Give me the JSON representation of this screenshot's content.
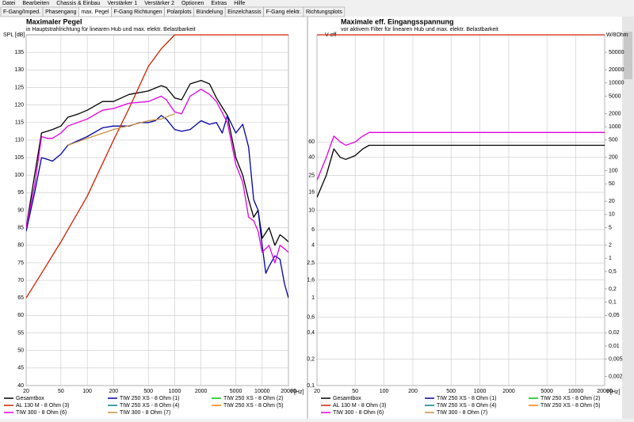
{
  "menu": [
    "Datei",
    "Bearbeiten",
    "Chassis & Einbau",
    "Verstärker 1",
    "Verstärker 2",
    "Optionen",
    "Extras",
    "Hilfe"
  ],
  "tabs": [
    "F-Gang/Imped.",
    "Phasengang",
    "max. Pegel",
    "F-Gang Richtungen",
    "Polarplots",
    "Bündelung",
    "Einzelchassis",
    "F-Gang elektr.",
    "Richtungsplots"
  ],
  "active_tab": 2,
  "chart_data": [
    {
      "type": "line",
      "title": "Maximaler Pegel",
      "subtitle": "in Hauptstrahlrichtung für linearen Hub und max. elektr. Belastbarkeit",
      "y_label": "SPL [dB]",
      "x_label": "f [Hz]",
      "xlog": true,
      "ylog": false,
      "grid": true,
      "xlim": [
        20,
        20000
      ],
      "xticks": [
        20,
        50,
        100,
        200,
        500,
        1000,
        2000,
        5000,
        10000,
        20000
      ],
      "ylim": [
        40,
        140
      ],
      "yticks": [
        40,
        45,
        50,
        55,
        60,
        65,
        70,
        75,
        80,
        85,
        90,
        95,
        100,
        105,
        110,
        115,
        120,
        125,
        130,
        135
      ],
      "series": [
        {
          "name": "Gesamtbox",
          "color": "#000000",
          "x": [
            20,
            25,
            30,
            40,
            50,
            60,
            80,
            100,
            150,
            200,
            300,
            500,
            700,
            800,
            1000,
            1200,
            1500,
            2000,
            2500,
            3000,
            4000,
            5000,
            6000,
            7000,
            8000,
            9000,
            10000,
            12000,
            14000,
            16000,
            18000,
            20000
          ],
          "values": [
            85,
            100,
            112,
            113,
            114,
            116.5,
            117.5,
            118.5,
            121,
            121,
            123,
            124,
            125.5,
            125,
            122,
            121.5,
            126,
            127,
            126,
            122,
            117,
            105,
            100,
            93,
            88,
            90,
            82,
            85,
            80,
            83,
            82,
            81
          ]
        },
        {
          "name": "TIW 250 XS - 8 Ohm (1)",
          "color": "#0000a0",
          "x": [
            20,
            25,
            30,
            35,
            40,
            50,
            60,
            100,
            150,
            200,
            300,
            400,
            500,
            600,
            700,
            800,
            1000,
            1200,
            1500,
            2000,
            2500,
            3000,
            3500,
            4000,
            5000,
            6000,
            7000,
            8000,
            9000,
            10000,
            11000,
            12000,
            14000,
            16000,
            18000,
            20000
          ],
          "values": [
            84,
            95,
            105,
            104.5,
            104,
            106,
            108.5,
            111,
            113.5,
            114,
            114,
            115,
            115,
            115.5,
            117,
            116,
            113,
            112.5,
            113,
            115.5,
            114.5,
            115,
            112,
            117,
            112,
            114.5,
            108,
            93,
            90,
            80,
            72,
            74,
            77,
            76,
            69,
            65
          ]
        },
        {
          "name": "TIW 250 XS - 8 Ohm (2)",
          "color": "#00c000",
          "x": [],
          "values": []
        },
        {
          "name": "AL 130 M - 8 Ohm (3)",
          "color": "#d02000",
          "x": [
            20,
            30,
            50,
            100,
            200,
            300,
            500,
            700,
            1000,
            2000,
            20000
          ],
          "values": [
            65,
            72,
            81,
            94,
            110,
            119,
            131,
            136,
            140,
            140,
            140
          ]
        },
        {
          "name": "TIW 250 XS - 8 Ohm (4)",
          "color": "#008080",
          "x": [],
          "values": []
        },
        {
          "name": "TIW 250 XS - 8 Ohm (5)",
          "color": "#ff8000",
          "x": [],
          "values": []
        },
        {
          "name": "TIW 300 - 8 Ohm (6)",
          "color": "#e000e0",
          "x": [
            20,
            25,
            30,
            35,
            40,
            50,
            60,
            100,
            150,
            200,
            300,
            500,
            700,
            800,
            1000,
            1200,
            1500,
            2000,
            2500,
            3000,
            4000,
            5000,
            6000,
            7000,
            8000,
            9000,
            10000,
            12000,
            14000,
            16000,
            18000,
            20000
          ],
          "values": [
            85,
            97,
            111,
            110.5,
            110.5,
            112,
            114,
            116,
            118.5,
            119,
            120.5,
            121,
            122.5,
            121.5,
            118,
            117.5,
            122.5,
            124.5,
            123,
            121,
            115,
            103,
            98,
            88,
            87,
            84,
            78,
            80,
            75,
            80,
            79,
            78
          ]
        },
        {
          "name": "TIW 300 - 8 Ohm (7)",
          "color": "#c89040",
          "x": [
            60,
            100,
            200,
            500,
            700,
            1000
          ],
          "values": [
            108.5,
            110.5,
            113,
            115.5,
            116,
            117.5
          ]
        }
      ]
    },
    {
      "type": "line",
      "title": "Maximale eff. Eingangsspannung",
      "subtitle": "vor aktivem Filter für linearen Hub und max. elektr. Belastbarkeit",
      "y_label": "V eff",
      "y2_label": "W/8Ohm",
      "x_label": "f [Hz]",
      "xlog": true,
      "ylog": true,
      "y2log": true,
      "grid": true,
      "xlim": [
        20,
        20000
      ],
      "xticks": [
        20,
        50,
        100,
        200,
        500,
        1000,
        2000,
        5000,
        10000,
        20000
      ],
      "ylim": [
        0.1,
        1000
      ],
      "yticks": [
        {
          "value": 0.1,
          "label": "0,1"
        },
        {
          "value": 0.2,
          "label": "0,2"
        },
        {
          "value": 0.4,
          "label": "0,4"
        },
        {
          "value": 0.6,
          "label": "0,6"
        },
        1,
        {
          "value": 1.6,
          "label": "1,6"
        },
        {
          "value": 2.5,
          "label": "2,5"
        },
        4,
        6,
        10,
        16,
        25,
        40,
        60
      ],
      "y2lim": [
        0.00125,
        125000
      ],
      "y2ticks": [
        {
          "value": 0.002,
          "label": "0,002"
        },
        {
          "value": 0.005,
          "label": "0,005"
        },
        {
          "value": 0.01,
          "label": "0,01"
        },
        {
          "value": 0.02,
          "label": "0,02"
        },
        {
          "value": 0.05,
          "label": "0,05"
        },
        {
          "value": 0.1,
          "label": "0,1"
        },
        {
          "value": 0.2,
          "label": "0,2"
        },
        {
          "value": 0.5,
          "label": "0,5"
        },
        1,
        2,
        5,
        10,
        20,
        50,
        100,
        200,
        500,
        1000,
        2000,
        5000,
        10000,
        20000,
        50000
      ],
      "series": [
        {
          "name": "Gesamtbox",
          "color": "#000000",
          "x": [
            20,
            25,
            30,
            35,
            40,
            50,
            60,
            70,
            100,
            1000,
            20000
          ],
          "values": [
            14,
            25,
            50,
            40,
            38,
            42,
            50,
            55,
            55,
            55,
            55
          ]
        },
        {
          "name": "TIW 250 XS - 8 Ohm (1)",
          "color": "#0000a0",
          "x": [],
          "values": []
        },
        {
          "name": "TIW 250 XS - 8 Ohm (2)",
          "color": "#00c000",
          "x": [],
          "values": []
        },
        {
          "name": "AL 130 M - 8 Ohm (3)",
          "color": "#d02000",
          "x": [
            20,
            20000
          ],
          "values": [
            1000,
            1000
          ]
        },
        {
          "name": "TIW 250 XS - 8 Ohm (4)",
          "color": "#008080",
          "x": [],
          "values": []
        },
        {
          "name": "TIW 250 XS - 8 Ohm (5)",
          "color": "#ff8000",
          "x": [],
          "values": []
        },
        {
          "name": "TIW 300 - 8 Ohm (6)",
          "color": "#e000e0",
          "x": [
            20,
            25,
            30,
            35,
            40,
            50,
            60,
            70,
            100,
            1000,
            20000
          ],
          "values": [
            22,
            40,
            70,
            60,
            55,
            60,
            70,
            77,
            77,
            77,
            77
          ]
        },
        {
          "name": "TIW 300 - 8 Ohm (7)",
          "color": "#c89040",
          "x": [],
          "values": []
        }
      ]
    }
  ]
}
